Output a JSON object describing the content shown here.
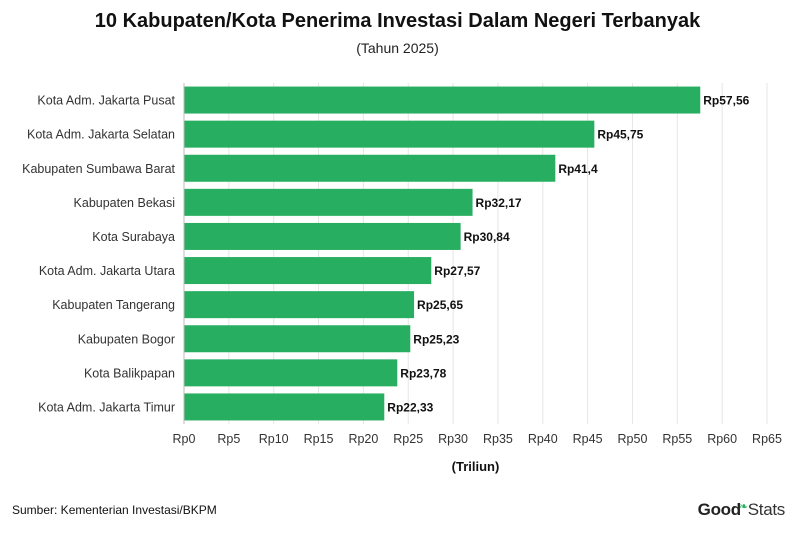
{
  "title": "10 Kabupaten/Kota Penerima Investasi Dalam Negeri Terbanyak",
  "subtitle": "(Tahun 2025)",
  "source": "Sumber: Kementerian Investasi/BKPM",
  "brand": {
    "good": "Good",
    "stats": "Stats"
  },
  "colors": {
    "bar": "#27ae60",
    "grid": "#e6e6e6",
    "axis": "#666666"
  },
  "chart_data": {
    "type": "bar",
    "orientation": "horizontal",
    "categories": [
      "Kota Adm. Jakarta Pusat",
      "Kota Adm. Jakarta Selatan",
      "Kabupaten Sumbawa Barat",
      "Kabupaten Bekasi",
      "Kota Surabaya",
      "Kota Adm. Jakarta Utara",
      "Kabupaten Tangerang",
      "Kabupaten Bogor",
      "Kota Balikpapan",
      "Kota Adm. Jakarta Timur"
    ],
    "values": [
      57.56,
      45.75,
      41.4,
      32.17,
      30.84,
      27.57,
      25.65,
      25.23,
      23.78,
      22.33
    ],
    "value_labels": [
      "Rp57,56",
      "Rp45,75",
      "Rp41,4",
      "Rp32,17",
      "Rp30,84",
      "Rp27,57",
      "Rp25,65",
      "Rp25,23",
      "Rp23,78",
      "Rp22,33"
    ],
    "xlabel": "(Triliun)",
    "xlim": [
      0,
      65
    ],
    "xticks": [
      0,
      5,
      10,
      15,
      20,
      25,
      30,
      35,
      40,
      45,
      50,
      55,
      60,
      65
    ],
    "xtick_labels": [
      "Rp0",
      "Rp5",
      "Rp10",
      "Rp15",
      "Rp20",
      "Rp25",
      "Rp30",
      "Rp35",
      "Rp40",
      "Rp45",
      "Rp50",
      "Rp55",
      "Rp60",
      "Rp65"
    ],
    "grid": true
  }
}
